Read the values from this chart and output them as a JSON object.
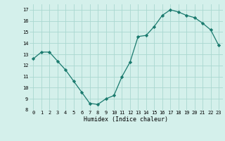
{
  "x": [
    0,
    1,
    2,
    3,
    4,
    5,
    6,
    7,
    8,
    9,
    10,
    11,
    12,
    13,
    14,
    15,
    16,
    17,
    18,
    19,
    20,
    21,
    22,
    23
  ],
  "y": [
    12.6,
    13.2,
    13.2,
    12.4,
    11.6,
    10.6,
    9.6,
    8.6,
    8.5,
    9.0,
    9.3,
    11.0,
    12.3,
    14.6,
    14.7,
    15.5,
    16.5,
    17.0,
    16.8,
    16.5,
    16.3,
    15.8,
    15.2,
    13.8
  ],
  "xlabel": "Humidex (Indice chaleur)",
  "ylim": [
    8,
    17.5
  ],
  "xlim": [
    -0.5,
    23.5
  ],
  "yticks": [
    8,
    9,
    10,
    11,
    12,
    13,
    14,
    15,
    16,
    17
  ],
  "xticks": [
    0,
    1,
    2,
    3,
    4,
    5,
    6,
    7,
    8,
    9,
    10,
    11,
    12,
    13,
    14,
    15,
    16,
    17,
    18,
    19,
    20,
    21,
    22,
    23
  ],
  "line_color": "#1a7a6e",
  "marker": "D",
  "marker_size": 2.2,
  "bg_color": "#d4f0eb",
  "grid_color": "#aad8d0",
  "font_family": "monospace",
  "tick_fontsize": 5.0,
  "xlabel_fontsize": 6.0
}
